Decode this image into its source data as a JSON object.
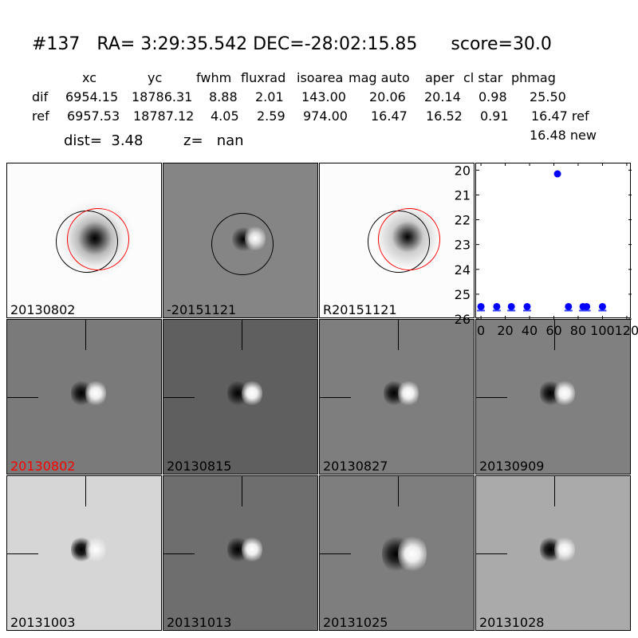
{
  "title": "#137   RA= 3:29:35.542 DEC=-28:02:15.85      score=30.0",
  "table": {
    "headers": [
      "xc",
      "yc",
      "fwhm",
      "fluxrad",
      "isoarea",
      "mag auto",
      "aper",
      "cl star",
      "phmag"
    ],
    "dif": {
      "label": "dif",
      "values": [
        "6954.15",
        "18786.31",
        "8.88",
        "2.01",
        "143.00",
        "20.06",
        "20.14",
        "0.98",
        "25.50"
      ]
    },
    "ref": {
      "label": "ref",
      "values": [
        "6957.53",
        "18787.12",
        "4.05",
        "2.59",
        "974.00",
        "16.47",
        "16.52",
        "0.91",
        "16.47 ref"
      ]
    },
    "new_phmag": "16.48 new",
    "dist": "dist=  3.48",
    "z": "z=   nan"
  },
  "panels": [
    {
      "label": "20130802"
    },
    {
      "label": "-20151121"
    },
    {
      "label": "R20151121"
    },
    {
      "label": "20130802",
      "color": "#ff0000"
    },
    {
      "label": "20130815"
    },
    {
      "label": "20130827"
    },
    {
      "label": "20130909"
    },
    {
      "label": "20131003"
    },
    {
      "label": "20131013"
    },
    {
      "label": "20131025"
    },
    {
      "label": "20131028"
    }
  ],
  "chart_data": {
    "type": "scatter",
    "xlim": [
      -4,
      124
    ],
    "ylim": [
      26,
      19.7
    ],
    "xticks": [
      "0",
      "20",
      "40",
      "60",
      "80",
      "100",
      "120"
    ],
    "yticks": [
      "20",
      "21",
      "22",
      "23",
      "24",
      "25",
      "26"
    ],
    "points": [
      [
        0,
        25.5
      ],
      [
        13,
        25.5
      ],
      [
        25,
        25.5
      ],
      [
        38,
        25.5
      ],
      [
        63,
        20.15
      ],
      [
        72,
        25.5
      ],
      [
        84,
        25.5
      ],
      [
        87,
        25.5
      ],
      [
        100,
        25.5
      ]
    ],
    "color": "#0000ff"
  }
}
